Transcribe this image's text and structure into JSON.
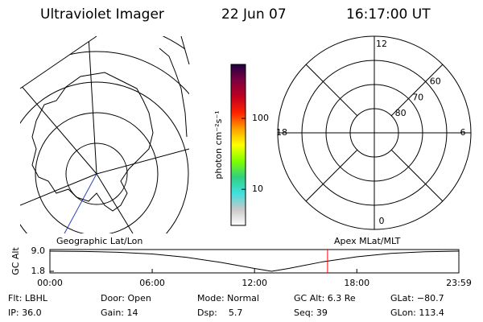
{
  "header": {
    "title": "Ultraviolet Imager",
    "date": "22 Jun 07",
    "time": "16:17:00 UT"
  },
  "colorbar": {
    "label": "photon cm⁻²s⁻¹",
    "log": true,
    "lim": [
      3.1,
      577
    ],
    "ticks": [
      10,
      100
    ],
    "colors": [
      "#ffffff",
      "#c8c8c8",
      "#40e0e0",
      "#30d080",
      "#80ff00",
      "#ffff00",
      "#ffa000",
      "#ff2000",
      "#c00020",
      "#800040",
      "#200040"
    ]
  },
  "geographic": {
    "title": "Geographic Lat/Lon"
  },
  "polar": {
    "title": "Apex MLat/MLT",
    "lat_lim": [
      50,
      90
    ],
    "lat_ticks": [
      60,
      70,
      80
    ],
    "mlt_ticks": [
      12,
      6,
      0,
      18
    ]
  },
  "altitude_plot": {
    "ylabel": "GC Alt",
    "ylim": [
      1.8,
      9.0
    ],
    "yticks": [
      {
        "value": 9.0,
        "label": "9.0"
      },
      {
        "value": 1.8,
        "label": "1.8"
      }
    ],
    "xlim": [
      0,
      23.983
    ],
    "xticks": [
      {
        "value": 0,
        "label": "00:00"
      },
      {
        "value": 6,
        "label": "06:00"
      },
      {
        "value": 12,
        "label": "12:00"
      },
      {
        "value": 18,
        "label": "18:00"
      },
      {
        "value": 23.983,
        "label": "23:59"
      }
    ],
    "x": [
      0,
      2,
      4,
      6,
      8,
      10,
      12,
      13,
      14,
      16,
      18,
      20,
      22,
      23.983
    ],
    "values": [
      9.0,
      8.9,
      8.6,
      8.0,
      6.8,
      5.0,
      2.8,
      1.8,
      2.8,
      5.2,
      7.0,
      8.2,
      8.8,
      9.0
    ],
    "current_time": 16.283,
    "marker_color": "#ff0000"
  },
  "status": [
    [
      "Flt: LBHL",
      "Door: Open",
      "Mode: Normal",
      "GC Alt: 6.3 Re",
      "GLat: −80.7"
    ],
    [
      "IP: 36.0",
      "Gain: 14",
      "Dsp:    5.7",
      "Seq: 39",
      "GLon: 113.4"
    ]
  ]
}
